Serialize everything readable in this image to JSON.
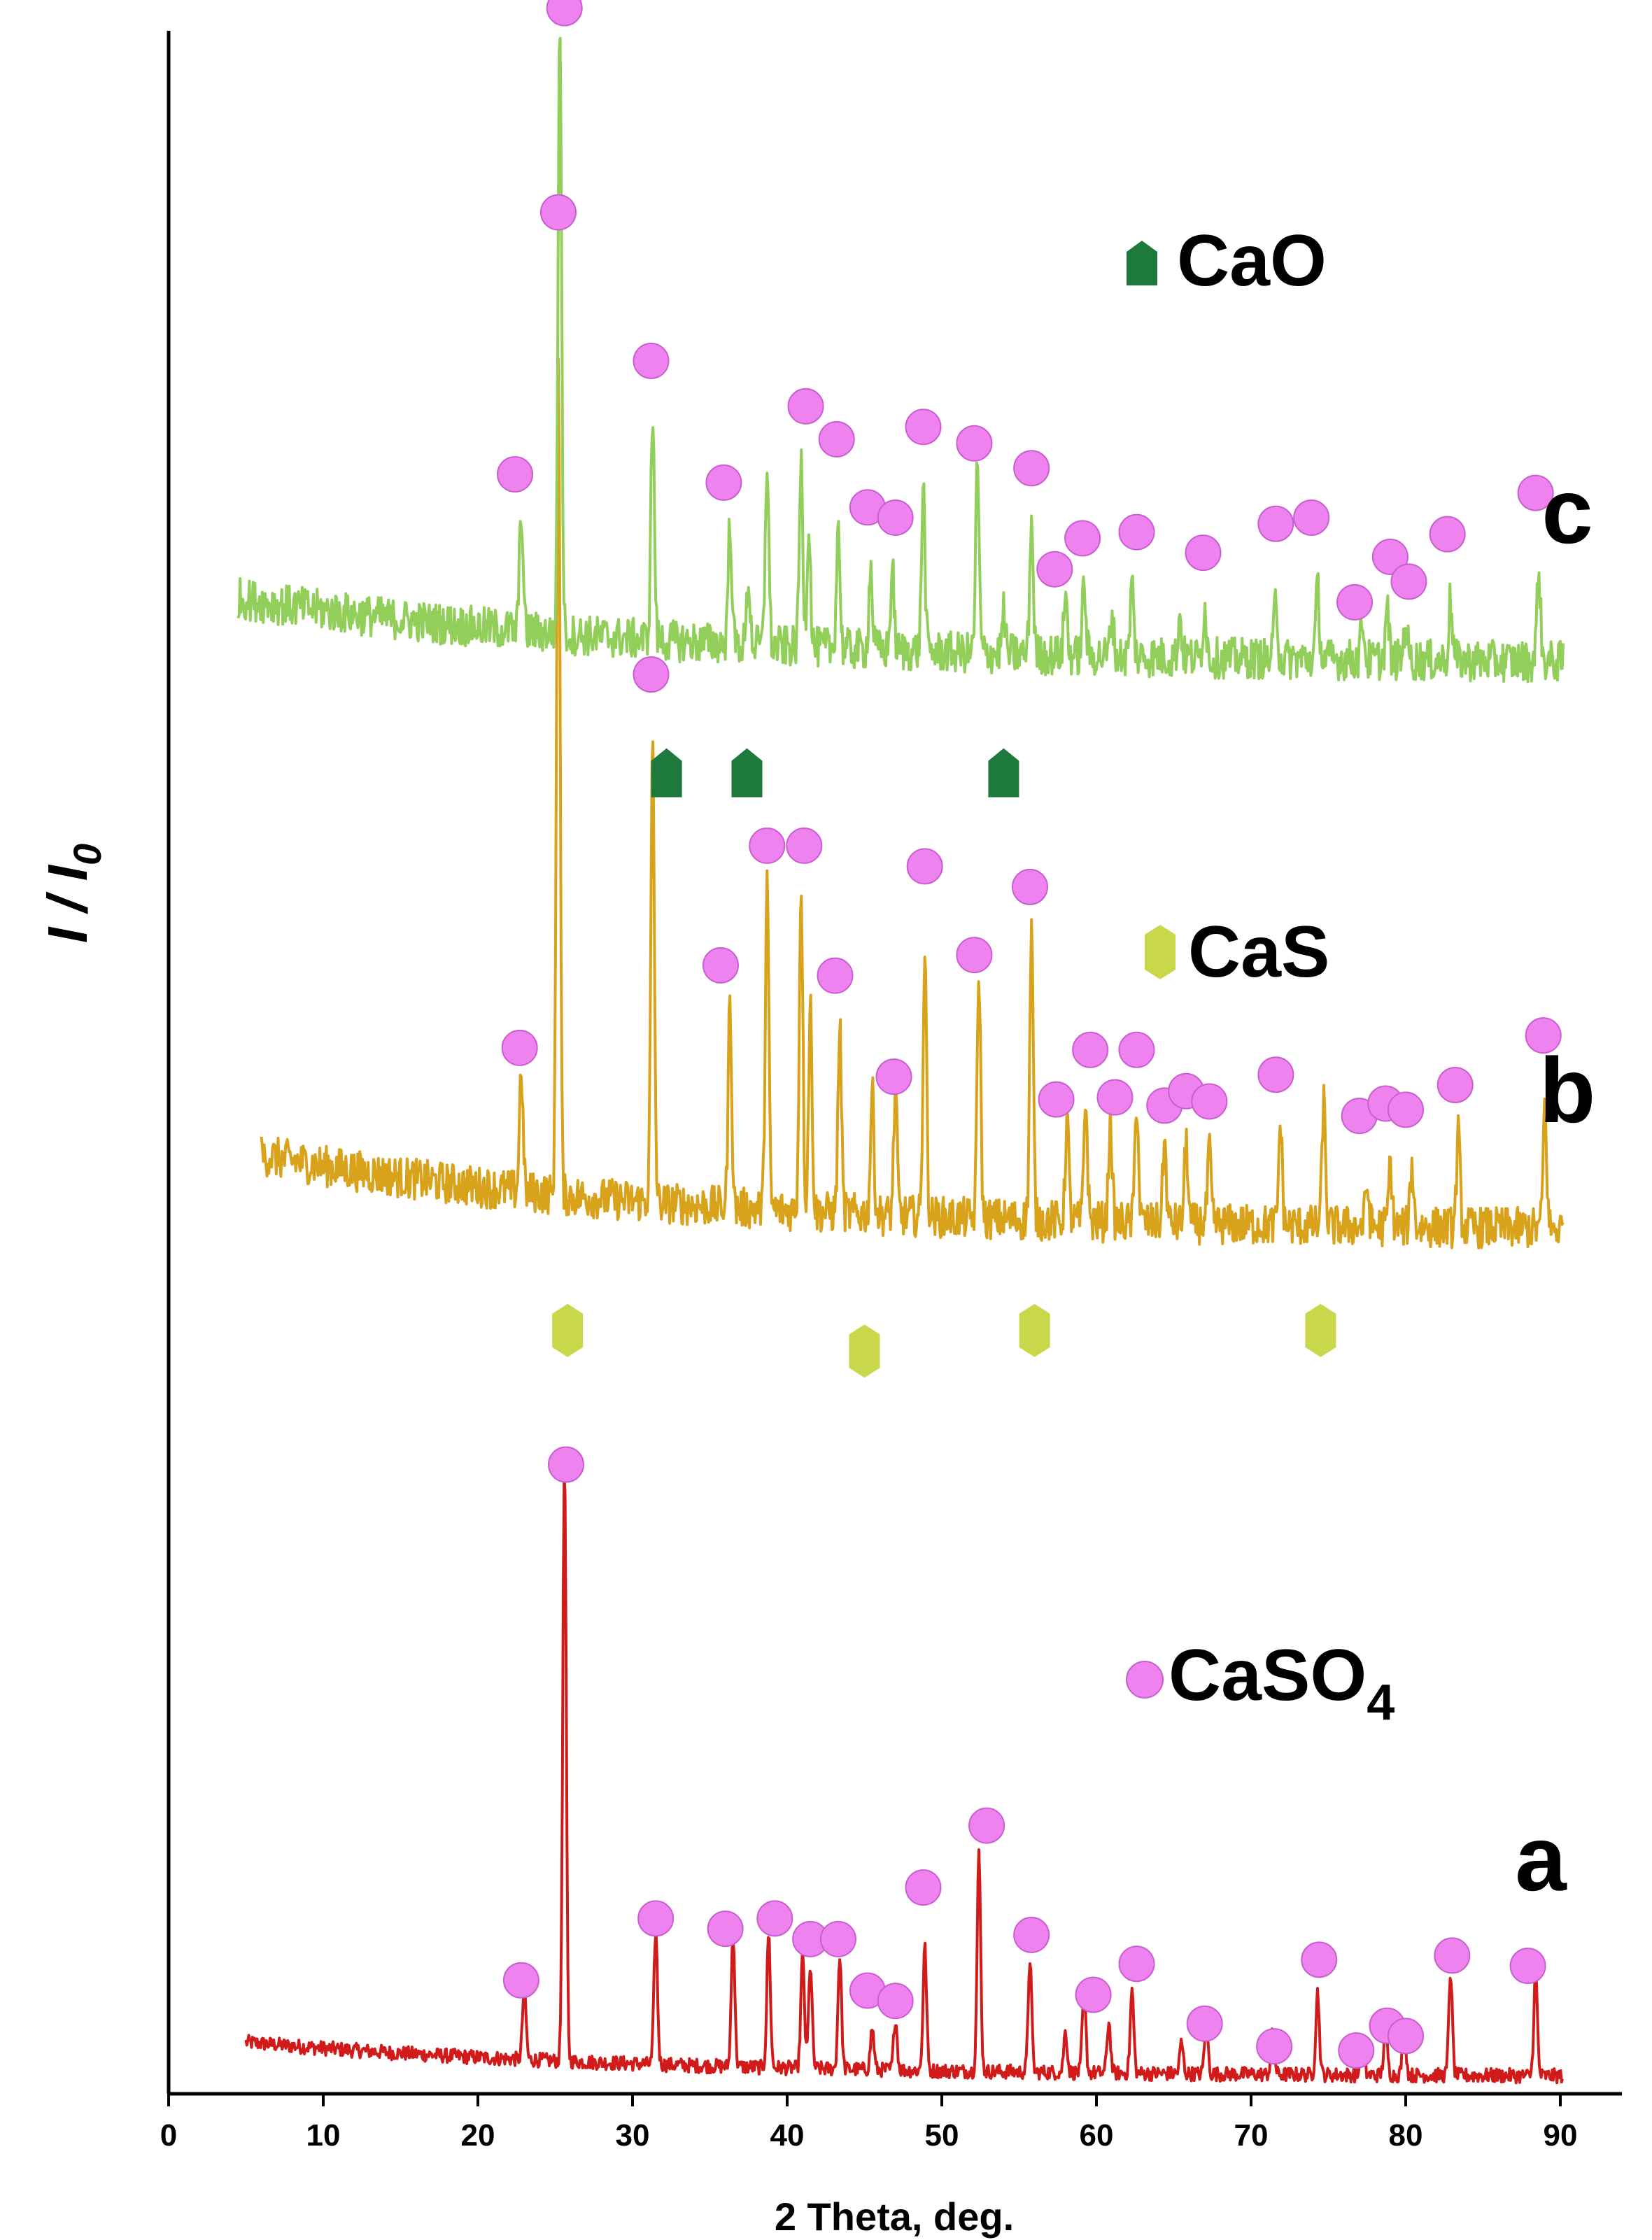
{
  "chart_data": {
    "type": "line",
    "title": "",
    "xlabel": "2 Theta, deg.",
    "ylabel": "I / I",
    "ylabel_subscript": "0",
    "xlim": [
      0,
      90
    ],
    "ylim": [
      0,
      100
    ],
    "ylim_note": "relative intensity, curves vertically offset (arbitrary units)",
    "xticks": [
      "0",
      "10",
      "20",
      "30",
      "40",
      "50",
      "60",
      "70",
      "80",
      "90"
    ],
    "colors": {
      "a": "#d11a1a",
      "b": "#d9a21b",
      "c": "#92cf5a",
      "caso4_marker": "#ee82ee",
      "caso4_marker_edge": "#c95ed0",
      "cas_marker": "#c9d84a",
      "cao_marker": "#1e7a3c"
    },
    "legend": {
      "cao": "CaO",
      "cas": "CaS",
      "caso4_main": "CaSO",
      "caso4_sub": "4"
    },
    "series": [
      {
        "name": "a",
        "offset": 0,
        "baseline_start": 2.5,
        "baseline_end": 0.8,
        "noise": 0.35,
        "peaks": [
          [
            23.0,
            3.5
          ],
          [
            25.6,
            29.0
          ],
          [
            31.5,
            6.5
          ],
          [
            36.5,
            6.5
          ],
          [
            38.8,
            6.5
          ],
          [
            41.0,
            5.5
          ],
          [
            41.5,
            5.0
          ],
          [
            43.4,
            5.5
          ],
          [
            45.5,
            2.0
          ],
          [
            47.0,
            2.5
          ],
          [
            48.9,
            6.0
          ],
          [
            52.4,
            10.5
          ],
          [
            55.7,
            5.5
          ],
          [
            58.0,
            2.0
          ],
          [
            59.2,
            4.0
          ],
          [
            60.8,
            2.5
          ],
          [
            62.3,
            4.0
          ],
          [
            65.5,
            1.5
          ],
          [
            67.1,
            2.5
          ],
          [
            71.4,
            2.0
          ],
          [
            74.3,
            4.0
          ],
          [
            77.2,
            1.8
          ],
          [
            78.7,
            2.5
          ],
          [
            79.9,
            2.5
          ],
          [
            82.9,
            5.0
          ],
          [
            88.4,
            5.0
          ]
        ],
        "caso4_markers": [
          22.8,
          25.7,
          31.5,
          36.0,
          39.2,
          41.5,
          43.3,
          45.2,
          47.0,
          48.8,
          52.9,
          55.8,
          59.8,
          62.6,
          67.0,
          71.5,
          74.4,
          76.8,
          78.8,
          80.0,
          83.0,
          87.9
        ],
        "caso4_marker_y": [
          5.5,
          30.5,
          8.5,
          8.0,
          8.5,
          7.5,
          7.5,
          5.0,
          4.5,
          10.0,
          13.0,
          7.7,
          4.8,
          6.3,
          3.4,
          2.3,
          6.5,
          2.1,
          3.3,
          2.8,
          6.7,
          6.2
        ]
      },
      {
        "name": "b",
        "offset": 41.0,
        "baseline_start": 4.5,
        "baseline_end": 0.8,
        "noise": 1.0,
        "peaks": [
          [
            22.8,
            6.0
          ],
          [
            25.2,
            41.0
          ],
          [
            31.3,
            22.0
          ],
          [
            36.3,
            10.0
          ],
          [
            38.7,
            16.0
          ],
          [
            40.9,
            16.0
          ],
          [
            41.5,
            10.0
          ],
          [
            43.4,
            9.0
          ],
          [
            45.5,
            6.0
          ],
          [
            47.0,
            6.0
          ],
          [
            48.9,
            13.0
          ],
          [
            52.4,
            12.0
          ],
          [
            55.8,
            14.0
          ],
          [
            58.1,
            5.0
          ],
          [
            59.3,
            6.0
          ],
          [
            60.9,
            5.0
          ],
          [
            62.6,
            6.0
          ],
          [
            64.4,
            4.0
          ],
          [
            65.8,
            4.0
          ],
          [
            67.3,
            3.5
          ],
          [
            71.9,
            5.0
          ],
          [
            74.7,
            6.0
          ],
          [
            77.5,
            2.0
          ],
          [
            79.0,
            3.0
          ],
          [
            80.4,
            3.0
          ],
          [
            83.4,
            4.5
          ],
          [
            89.0,
            6.0
          ]
        ],
        "caso4_markers": [
          22.7,
          25.2,
          31.2,
          35.7,
          38.7,
          41.1,
          43.1,
          46.9,
          48.9,
          52.1,
          55.7,
          57.4,
          59.6,
          61.2,
          62.6,
          64.4,
          65.8,
          67.3,
          71.6,
          77.0,
          78.7,
          80.0,
          83.2,
          88.9
        ],
        "caso4_marker_y": [
          9.7,
          50.2,
          27.8,
          13.7,
          19.5,
          19.5,
          13.2,
          8.3,
          18.5,
          14.2,
          17.5,
          7.2,
          9.6,
          7.3,
          9.6,
          6.9,
          7.6,
          7.1,
          8.4,
          6.4,
          7.0,
          6.7,
          7.9,
          10.3
        ],
        "cas_markers": [
          25.8,
          45.0,
          56.0,
          74.5
        ],
        "cas_marker_y": [
          -4.0,
          -5.0,
          -4.0,
          -4.0
        ]
      },
      {
        "name": "c",
        "offset": 68.5,
        "baseline_start": 4.0,
        "baseline_end": 0.8,
        "noise": 1.0,
        "peaks": [
          [
            22.8,
            6.0
          ],
          [
            25.3,
            30.0
          ],
          [
            31.3,
            11.0
          ],
          [
            36.3,
            6.0
          ],
          [
            37.5,
            3.0
          ],
          [
            38.7,
            9.0
          ],
          [
            40.9,
            9.0
          ],
          [
            41.4,
            6.0
          ],
          [
            43.3,
            6.0
          ],
          [
            45.4,
            4.0
          ],
          [
            46.8,
            4.0
          ],
          [
            48.8,
            8.0
          ],
          [
            52.3,
            9.0
          ],
          [
            54.0,
            2.0
          ],
          [
            55.8,
            6.5
          ],
          [
            58.0,
            3.0
          ],
          [
            59.2,
            3.5
          ],
          [
            61.0,
            2.0
          ],
          [
            62.3,
            3.5
          ],
          [
            65.4,
            2.0
          ],
          [
            67.0,
            2.5
          ],
          [
            71.6,
            3.0
          ],
          [
            74.3,
            3.5
          ],
          [
            77.2,
            2.0
          ],
          [
            78.8,
            2.5
          ],
          [
            80.0,
            2.0
          ],
          [
            82.9,
            3.0
          ],
          [
            88.6,
            4.5
          ]
        ],
        "caso4_markers": [
          22.4,
          25.6,
          31.2,
          35.9,
          41.2,
          43.2,
          45.2,
          47.0,
          48.8,
          52.1,
          55.8,
          57.3,
          59.1,
          62.6,
          66.9,
          71.6,
          73.9,
          76.7,
          79.0,
          80.2,
          82.7,
          88.4
        ],
        "caso4_marker_y": [
          10.0,
          32.6,
          15.5,
          9.6,
          13.3,
          11.7,
          8.4,
          7.9,
          12.3,
          11.5,
          10.3,
          5.4,
          6.9,
          7.2,
          6.2,
          7.6,
          7.9,
          3.8,
          6.0,
          4.8,
          7.1,
          9.1
        ],
        "cao_markers": [
          32.2,
          37.4,
          54.0
        ],
        "cao_marker_y": [
          -4.5,
          -4.5,
          -4.5
        ]
      }
    ],
    "curve_labels": [
      "a",
      "b",
      "c"
    ],
    "curve_label_positions": [
      "right",
      "right",
      "right"
    ]
  }
}
